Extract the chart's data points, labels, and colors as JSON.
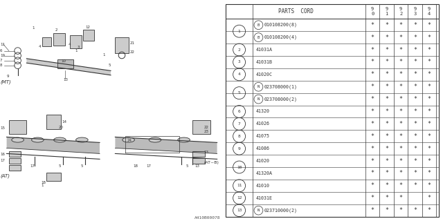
{
  "watermark": "A410B00078",
  "bg_color": "#ffffff",
  "years": [
    "9\n0",
    "9\n1",
    "9\n2",
    "9\n3",
    "9\n4"
  ],
  "rows": [
    {
      "num": "1",
      "prefix": "B",
      "part": "010108200(8)",
      "stars": [
        true,
        true,
        true,
        true,
        true
      ]
    },
    {
      "num": "1",
      "prefix": "B",
      "part": "010108200(4)",
      "stars": [
        true,
        true,
        true,
        true,
        true
      ]
    },
    {
      "num": "2",
      "prefix": "",
      "part": "41031A",
      "stars": [
        true,
        true,
        true,
        true,
        true
      ]
    },
    {
      "num": "3",
      "prefix": "",
      "part": "41031B",
      "stars": [
        true,
        true,
        true,
        true,
        true
      ]
    },
    {
      "num": "4",
      "prefix": "",
      "part": "41020C",
      "stars": [
        true,
        true,
        true,
        true,
        true
      ]
    },
    {
      "num": "5",
      "prefix": "N",
      "part": "023708000(1)",
      "stars": [
        true,
        true,
        true,
        true,
        true
      ]
    },
    {
      "num": "5",
      "prefix": "N",
      "part": "023708000(2)",
      "stars": [
        true,
        true,
        true,
        true,
        true
      ]
    },
    {
      "num": "6",
      "prefix": "",
      "part": "41320",
      "stars": [
        true,
        true,
        true,
        true,
        true
      ]
    },
    {
      "num": "7",
      "prefix": "",
      "part": "41026",
      "stars": [
        true,
        true,
        true,
        true,
        true
      ]
    },
    {
      "num": "8",
      "prefix": "",
      "part": "41075",
      "stars": [
        true,
        true,
        true,
        true,
        true
      ]
    },
    {
      "num": "9",
      "prefix": "",
      "part": "41086",
      "stars": [
        true,
        true,
        true,
        true,
        true
      ]
    },
    {
      "num": "10",
      "prefix": "",
      "part": "41020",
      "stars": [
        true,
        true,
        true,
        true,
        true
      ]
    },
    {
      "num": "10",
      "prefix": "",
      "part": "41320A",
      "stars": [
        true,
        true,
        true,
        true,
        true
      ]
    },
    {
      "num": "11",
      "prefix": "",
      "part": "41010",
      "stars": [
        true,
        true,
        true,
        true,
        true
      ]
    },
    {
      "num": "12",
      "prefix": "",
      "part": "41031E",
      "stars": [
        true,
        true,
        true,
        false,
        true
      ]
    },
    {
      "num": "13",
      "prefix": "N",
      "part": "023710000(2)",
      "stars": [
        true,
        true,
        true,
        true,
        true
      ]
    }
  ],
  "row_groups": [
    {
      "rows": [
        0,
        1
      ],
      "label": "1"
    },
    {
      "rows": [
        5,
        6
      ],
      "label": "5"
    },
    {
      "rows": [
        11,
        12
      ],
      "label": "10"
    }
  ],
  "dark": "#333333",
  "gray": "#888888"
}
